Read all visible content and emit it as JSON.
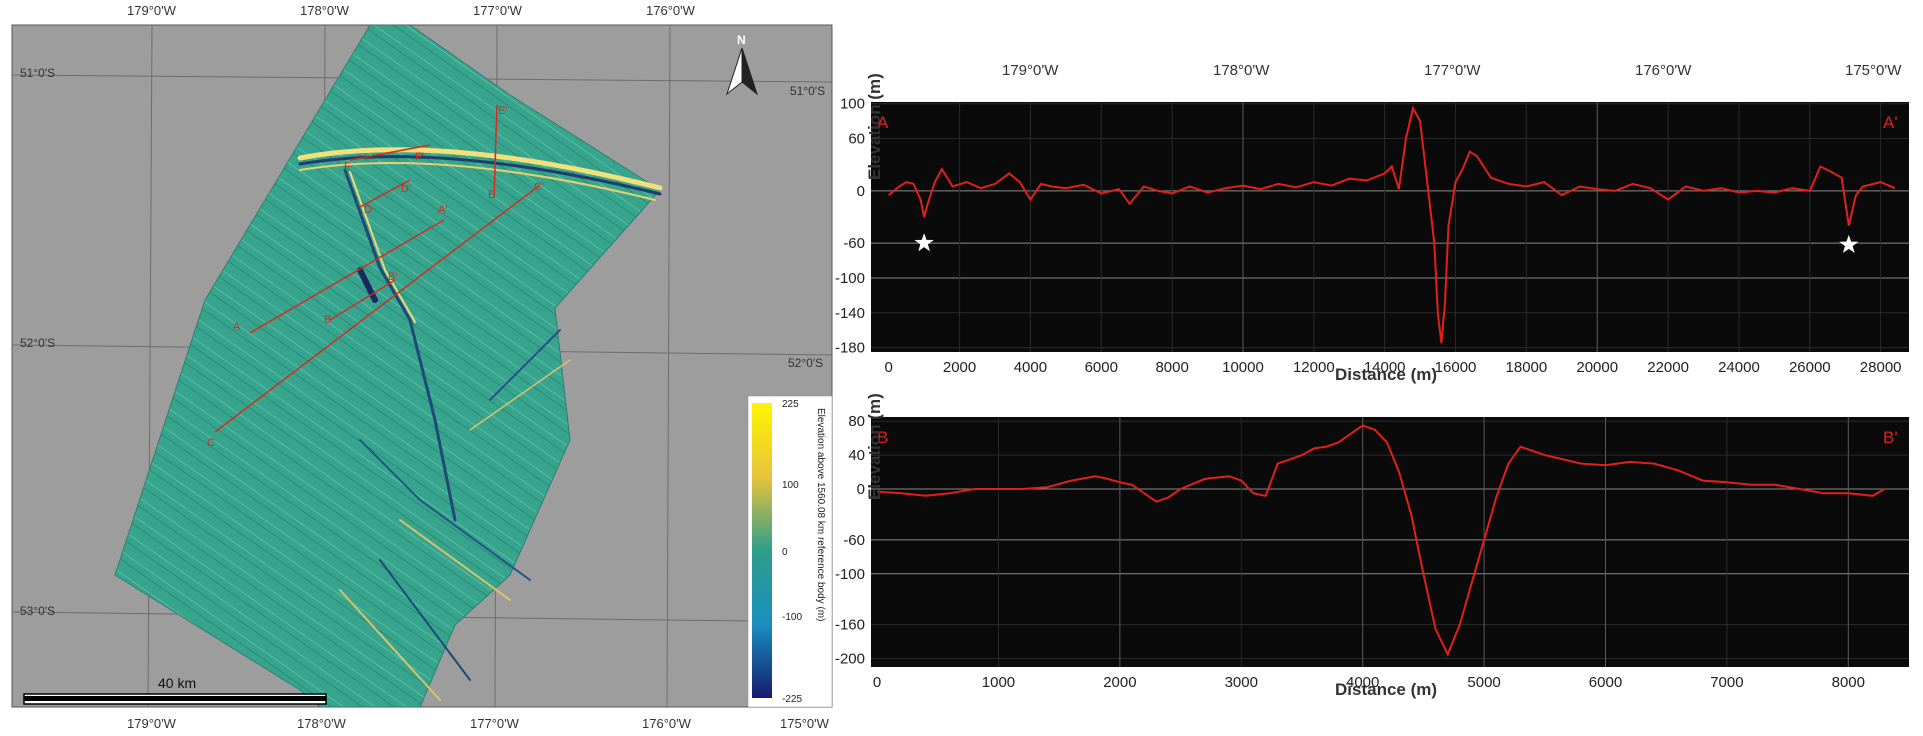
{
  "map": {
    "lon_top": [
      "179°0'W",
      "178°0'W",
      "177°0'W",
      "176°0'W"
    ],
    "lon_bottom": [
      "179°0'W",
      "178°0'W",
      "177°0'W",
      "176°0'W",
      "175°0'W"
    ],
    "lat_left": [
      "51°0'S",
      "52°0'S",
      "53°0'S"
    ],
    "lat_right": [
      "51°0'S",
      "52°0'S"
    ],
    "north_label": "N",
    "scale_label": "40 km",
    "profile_markers": [
      "A",
      "A'",
      "B",
      "B'",
      "C",
      "C'",
      "D",
      "D'",
      "E",
      "E'",
      "F",
      "F'"
    ],
    "colorbar": {
      "title": "Elevation above 1560.08 km reference body (m)",
      "ticks": [
        "225",
        "100",
        "0",
        "-100",
        "-225"
      ],
      "colors": [
        "#fff500",
        "#e8c33a",
        "#2e9e8a",
        "#1a8fbf",
        "#151a6e"
      ]
    }
  },
  "profiles": {
    "top_lon_labels": [
      "179°0'W",
      "178°0'W",
      "177°0'W",
      "176°0'W",
      "175°0'W"
    ],
    "line_color": "#e0201a"
  },
  "chart_data": [
    {
      "type": "line",
      "title": "",
      "start_label": "A",
      "end_label": "A'",
      "xlabel": "Distance (m)",
      "ylabel": "Elevation (m)",
      "xlim": [
        -500,
        28800
      ],
      "ylim": [
        -185,
        102
      ],
      "x_ticks": [
        "0",
        "2000",
        "4000",
        "6000",
        "8000",
        "10000",
        "12000",
        "14000",
        "16000",
        "18000",
        "20000",
        "22000",
        "24000",
        "26000",
        "28000"
      ],
      "y_ticks": [
        {
          "label": "100",
          "value": 100
        },
        {
          "label": "60",
          "value": 60
        },
        {
          "label": "0",
          "value": 0
        },
        {
          "label": "-60",
          "value": -60
        },
        {
          "label": "-100",
          "value": -100
        },
        {
          "label": "-140",
          "value": -140
        },
        {
          "label": "-180",
          "value": -180
        }
      ],
      "star_annotations": [
        {
          "x": 1000,
          "y": -60
        },
        {
          "x": 27100,
          "y": -62
        }
      ],
      "series": [
        {
          "x": [
            0,
            300,
            500,
            700,
            900,
            1000,
            1100,
            1300,
            1500,
            1800,
            2200,
            2600,
            3000,
            3400,
            3700,
            4000,
            4300,
            4600,
            5000,
            5500,
            6000,
            6500,
            6800,
            7200,
            7600,
            8000,
            8500,
            9000,
            9500,
            10000,
            10500,
            11000,
            11500,
            12000,
            12500,
            13000,
            13500,
            14000,
            14200,
            14400,
            14600,
            14800,
            15000,
            15200,
            15400,
            15500,
            15600,
            15700,
            15800,
            16000,
            16200,
            16400,
            16600,
            17000,
            17500,
            18000,
            18500,
            19000,
            19500,
            20000,
            20500,
            21000,
            21500,
            22000,
            22500,
            23000,
            23500,
            24000,
            24500,
            25000,
            25500,
            26000,
            26300,
            26600,
            26900,
            27100,
            27300,
            27500,
            28000,
            28400
          ],
          "y": [
            -5,
            5,
            10,
            8,
            -10,
            -30,
            -15,
            10,
            25,
            5,
            10,
            3,
            8,
            20,
            10,
            -10,
            8,
            5,
            3,
            7,
            -3,
            2,
            -15,
            5,
            0,
            -3,
            5,
            -2,
            3,
            6,
            2,
            8,
            4,
            10,
            6,
            14,
            12,
            20,
            28,
            2,
            60,
            95,
            80,
            10,
            -60,
            -140,
            -175,
            -130,
            -40,
            10,
            25,
            45,
            40,
            15,
            8,
            5,
            10,
            -5,
            5,
            2,
            0,
            8,
            3,
            -10,
            5,
            0,
            3,
            -2,
            0,
            -2,
            3,
            0,
            28,
            22,
            15,
            -40,
            -5,
            5,
            10,
            3
          ]
        }
      ]
    },
    {
      "type": "line",
      "title": "",
      "start_label": "B",
      "end_label": "B'",
      "xlabel": "Distance (m)",
      "ylabel": "Elevation (m)",
      "xlim": [
        -50,
        8500
      ],
      "ylim": [
        -210,
        85
      ],
      "x_ticks": [
        "0",
        "1000",
        "2000",
        "3000",
        "4000",
        "5000",
        "6000",
        "7000",
        "8000"
      ],
      "y_ticks": [
        {
          "label": "80",
          "value": 80
        },
        {
          "label": "40",
          "value": 40
        },
        {
          "label": "0",
          "value": 0
        },
        {
          "label": "-60",
          "value": -60
        },
        {
          "label": "-100",
          "value": -100
        },
        {
          "label": "-160",
          "value": -160
        },
        {
          "label": "-200",
          "value": -200
        }
      ],
      "series": [
        {
          "x": [
            0,
            200,
            400,
            600,
            800,
            1000,
            1200,
            1400,
            1600,
            1800,
            1900,
            2000,
            2100,
            2200,
            2300,
            2400,
            2500,
            2700,
            2900,
            3000,
            3100,
            3200,
            3300,
            3400,
            3500,
            3600,
            3700,
            3800,
            3900,
            4000,
            4100,
            4200,
            4300,
            4400,
            4500,
            4600,
            4700,
            4800,
            4900,
            5000,
            5100,
            5200,
            5300,
            5500,
            5800,
            6000,
            6200,
            6400,
            6600,
            6800,
            7000,
            7200,
            7400,
            7600,
            7800,
            8000,
            8200,
            8300
          ],
          "y": [
            -3,
            -5,
            -8,
            -5,
            0,
            0,
            0,
            2,
            10,
            15,
            12,
            8,
            5,
            -5,
            -15,
            -10,
            0,
            12,
            15,
            10,
            -5,
            -8,
            30,
            35,
            40,
            48,
            50,
            55,
            65,
            75,
            70,
            55,
            20,
            -30,
            -100,
            -165,
            -195,
            -160,
            -110,
            -60,
            -10,
            30,
            50,
            40,
            30,
            28,
            32,
            30,
            22,
            10,
            8,
            5,
            5,
            0,
            -5,
            -5,
            -8,
            0
          ]
        }
      ]
    }
  ]
}
